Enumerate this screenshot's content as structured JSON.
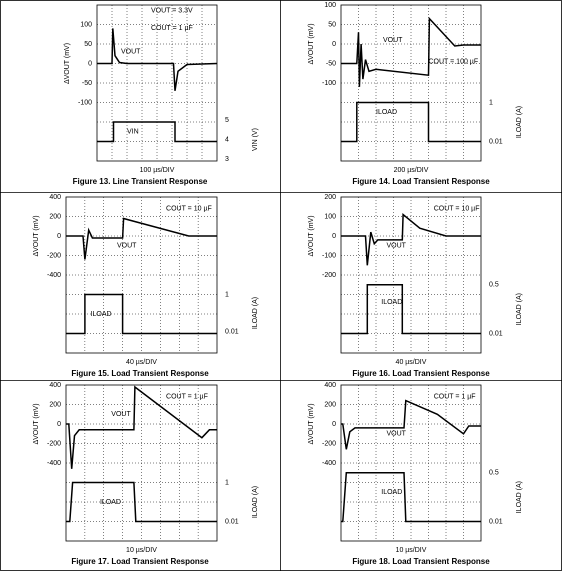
{
  "figures": [
    {
      "caption": "Figure 13. Line Transient Response",
      "time_div": "100 µs/DIV",
      "y_label": "ΔVOUT (mV)",
      "y_ticks": [
        "100",
        "50",
        "0",
        "-50",
        "-100"
      ],
      "y2_label": "VIN (V)",
      "y2_ticks": [
        "5",
        "4",
        "3"
      ],
      "annotations": [
        "VOUT = 3.3V",
        "COUT = 1 µF",
        "VOUT",
        "VIN"
      ]
    },
    {
      "caption": "Figure 14. Load Transient Response",
      "time_div": "200 µs/DIV",
      "y_label": "ΔVOUT (mV)",
      "y_ticks": [
        "100",
        "50",
        "0",
        "-50",
        "-100"
      ],
      "y2_label": "ILOAD (A)",
      "y2_ticks": [
        "1",
        "0.01"
      ],
      "annotations": [
        "VOUT",
        "COUT = 100 µF",
        "ILOAD"
      ]
    },
    {
      "caption": "Figure 15. Load Transient Response",
      "time_div": "40 µs/DIV",
      "y_label": "ΔVOUT (mV)",
      "y_ticks": [
        "400",
        "200",
        "0",
        "-200",
        "-400"
      ],
      "y2_label": "ILOAD (A)",
      "y2_ticks": [
        "1",
        "0.01"
      ],
      "annotations": [
        "COUT = 10 µF",
        "VOUT",
        "ILOAD"
      ]
    },
    {
      "caption": "Figure 16. Load Transient Response",
      "time_div": "40 µs/DIV",
      "y_label": "ΔVOUT (mV)",
      "y_ticks": [
        "200",
        "100",
        "0",
        "-100",
        "-200"
      ],
      "y2_label": "ILOAD (A)",
      "y2_ticks": [
        "0.5",
        "0.01"
      ],
      "annotations": [
        "COUT = 10 µF",
        "VOUT",
        "ILOAD"
      ]
    },
    {
      "caption": "Figure 17. Load Transient Response",
      "time_div": "10 µs/DIV",
      "y_label": "ΔVOUT (mV)",
      "y_ticks": [
        "400",
        "200",
        "0",
        "-200",
        "-400"
      ],
      "y2_label": "ILOAD (A)",
      "y2_ticks": [
        "1",
        "0.01"
      ],
      "annotations": [
        "COUT = 1 µF",
        "VOUT",
        "ILOAD"
      ]
    },
    {
      "caption": "Figure 18. Load Transient Response",
      "time_div": "10 µs/DIV",
      "y_label": "ΔVOUT (mV)",
      "y_ticks": [
        "400",
        "200",
        "0",
        "-200",
        "-400"
      ],
      "y2_label": "ILOAD (A)",
      "y2_ticks": [
        "0.5",
        "0.01"
      ],
      "annotations": [
        "COUT = 1 µF",
        "VOUT",
        "ILOAD"
      ]
    }
  ]
}
